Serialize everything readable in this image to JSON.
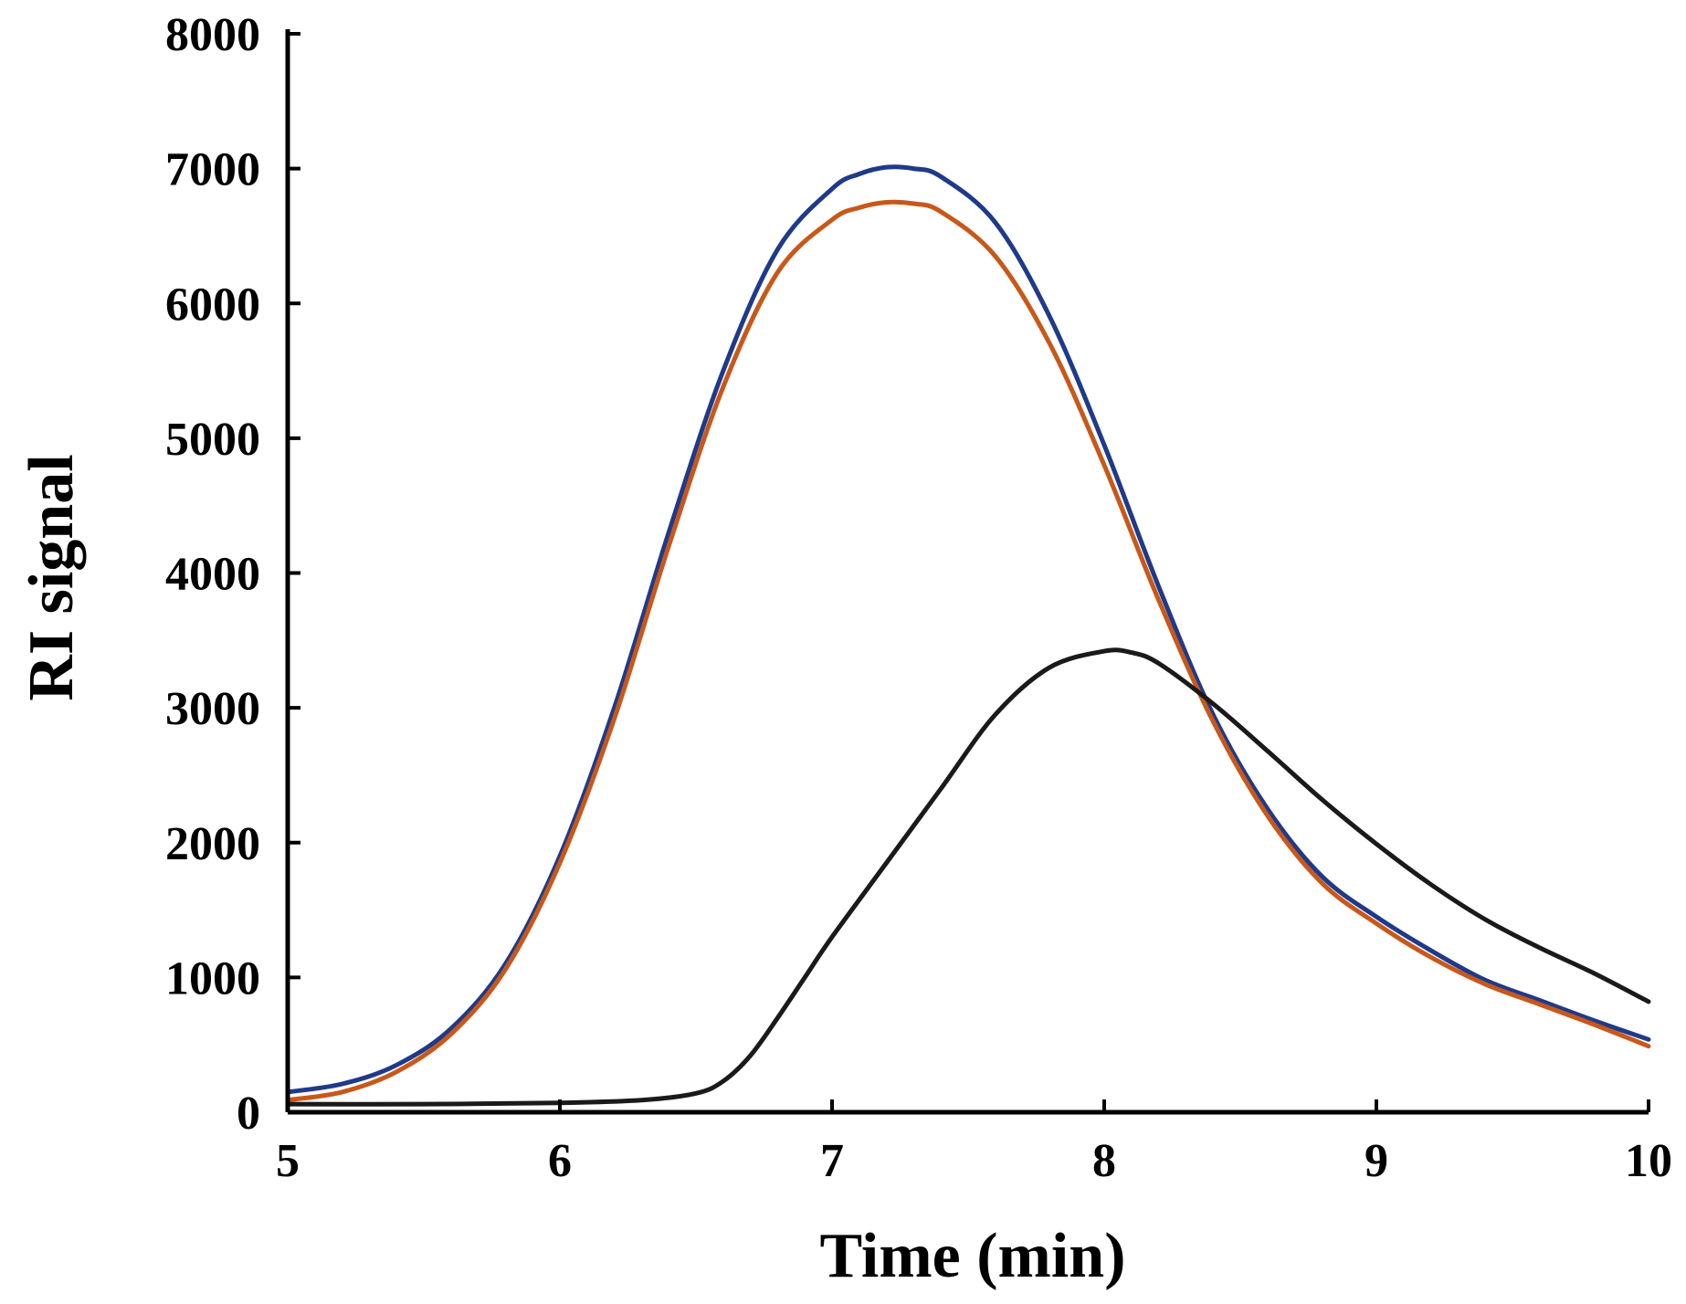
{
  "chart_data": {
    "type": "line",
    "title": "",
    "xlabel": "Time (min)",
    "ylabel": "RI signal",
    "xlim": [
      5,
      10
    ],
    "ylim": [
      0,
      8000
    ],
    "xticks": [
      5,
      6,
      7,
      8,
      9,
      10
    ],
    "yticks": [
      0,
      1000,
      2000,
      3000,
      4000,
      5000,
      6000,
      7000,
      8000
    ],
    "xtick_labels": [
      "5",
      "6",
      "7",
      "8",
      "9",
      "10"
    ],
    "ytick_labels": [
      "0",
      "1000",
      "2000",
      "3000",
      "4000",
      "5000",
      "6000",
      "7000",
      "8000"
    ],
    "grid": false,
    "legend": "none",
    "series": [
      {
        "name": "blue",
        "color": "#1f3a8a",
        "x": [
          5.0,
          5.2,
          5.4,
          5.6,
          5.8,
          6.0,
          6.2,
          6.4,
          6.6,
          6.8,
          7.0,
          7.1,
          7.2,
          7.3,
          7.4,
          7.6,
          7.8,
          8.0,
          8.2,
          8.4,
          8.6,
          8.8,
          9.0,
          9.2,
          9.4,
          9.6,
          9.8,
          10.0
        ],
        "y": [
          150,
          210,
          350,
          620,
          1100,
          1900,
          3000,
          4300,
          5500,
          6400,
          6850,
          6960,
          7010,
          7000,
          6940,
          6600,
          5900,
          4950,
          3900,
          2950,
          2250,
          1750,
          1450,
          1200,
          980,
          830,
          680,
          540
        ]
      },
      {
        "name": "orange",
        "color": "#c8581a",
        "x": [
          5.0,
          5.2,
          5.4,
          5.6,
          5.8,
          6.0,
          6.2,
          6.4,
          6.6,
          6.8,
          7.0,
          7.1,
          7.2,
          7.3,
          7.4,
          7.6,
          7.8,
          8.0,
          8.2,
          8.4,
          8.6,
          8.8,
          9.0,
          9.2,
          9.4,
          9.6,
          9.8,
          10.0
        ],
        "y": [
          90,
          150,
          300,
          580,
          1060,
          1850,
          2920,
          4200,
          5380,
          6230,
          6620,
          6710,
          6750,
          6740,
          6680,
          6350,
          5700,
          4800,
          3800,
          2900,
          2200,
          1700,
          1400,
          1150,
          950,
          800,
          650,
          490
        ]
      },
      {
        "name": "black",
        "color": "#1a1a1a",
        "x": [
          5.0,
          5.5,
          6.0,
          6.3,
          6.5,
          6.6,
          6.7,
          6.8,
          6.9,
          7.0,
          7.2,
          7.4,
          7.6,
          7.8,
          8.0,
          8.1,
          8.2,
          8.4,
          8.6,
          8.8,
          9.0,
          9.2,
          9.4,
          9.6,
          9.8,
          10.0
        ],
        "y": [
          60,
          60,
          70,
          90,
          140,
          230,
          420,
          700,
          1000,
          1300,
          1850,
          2400,
          2950,
          3300,
          3420,
          3410,
          3330,
          3030,
          2680,
          2320,
          1990,
          1690,
          1430,
          1220,
          1030,
          820
        ]
      }
    ]
  }
}
